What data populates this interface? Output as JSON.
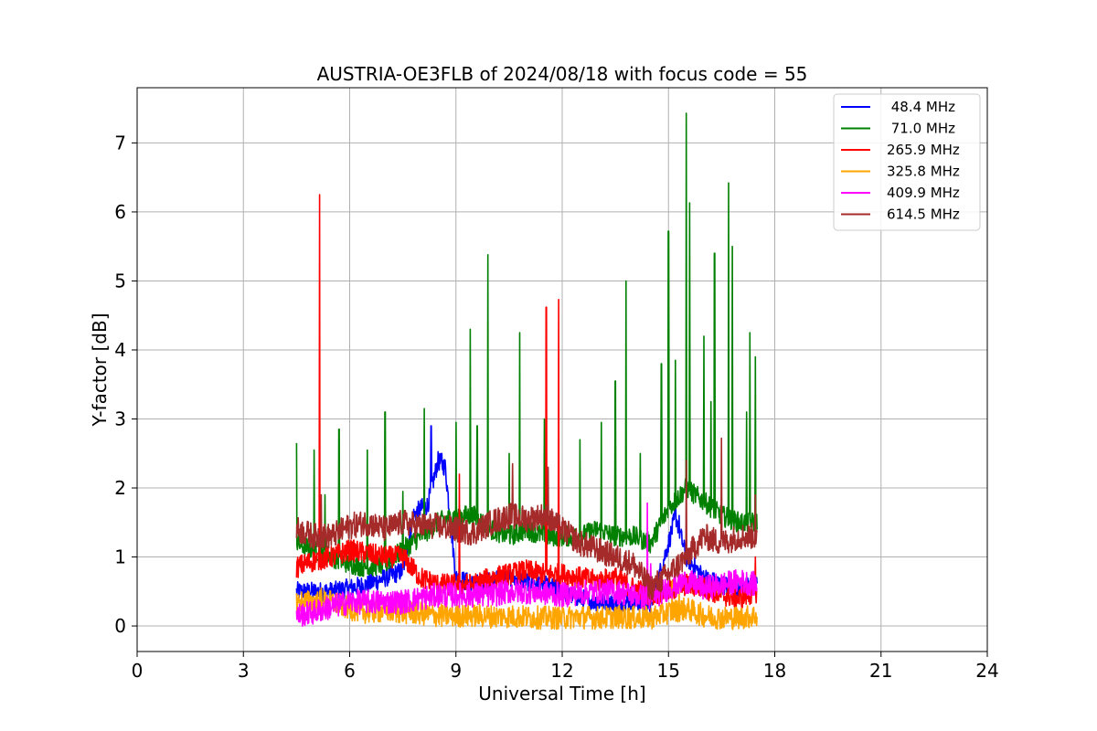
{
  "chart_data": {
    "type": "line",
    "title": "AUSTRIA-OE3FLB of 2024/08/18 with focus code = 55",
    "xlabel": "Universal Time [h]",
    "ylabel": "Y-factor [dB]",
    "xlim": [
      0,
      24
    ],
    "ylim": [
      -0.37,
      7.8
    ],
    "xticks": [
      "0",
      "3",
      "6",
      "9",
      "12",
      "15",
      "18",
      "21",
      "24"
    ],
    "yticks": [
      "0",
      "1",
      "2",
      "3",
      "4",
      "5",
      "6",
      "7"
    ],
    "grid": true,
    "legend_position": "top-right",
    "series": [
      {
        "name": " 48.4 MHz",
        "color": "#0000ff",
        "x": [
          4.5,
          5,
          5.5,
          6,
          6.5,
          7,
          7.5,
          7.8,
          8,
          8.2,
          8.5,
          8.7,
          9,
          9.5,
          10,
          10.5,
          11,
          11.5,
          12,
          12.5,
          13,
          13.5,
          14,
          14.5,
          15,
          15.2,
          15.5,
          16,
          16.5,
          17,
          17.5
        ],
        "values": [
          0.5,
          0.5,
          0.5,
          0.55,
          0.6,
          0.7,
          0.8,
          1.6,
          1.7,
          1.75,
          2.4,
          2.3,
          0.7,
          0.6,
          0.65,
          0.7,
          0.65,
          0.6,
          0.5,
          0.4,
          0.35,
          0.35,
          0.35,
          0.3,
          1.2,
          1.6,
          1.0,
          0.7,
          0.6,
          0.55,
          0.6
        ],
        "spikes": [
          [
            8.3,
            2.9
          ],
          [
            8.6,
            2.5
          ],
          [
            15.2,
            1.95
          ],
          [
            15.3,
            1.6
          ]
        ]
      },
      {
        "name": " 71.0 MHz",
        "color": "#008000",
        "x": [
          4.5,
          5,
          5.5,
          6,
          6.5,
          7,
          7.5,
          8,
          8.5,
          9,
          9.5,
          10,
          10.5,
          11,
          11.5,
          12,
          12.5,
          13,
          13.5,
          14,
          14.5,
          15,
          15.5,
          16,
          16.5,
          17,
          17.5
        ],
        "values": [
          1.2,
          1.1,
          1.0,
          0.9,
          0.85,
          0.9,
          1.1,
          1.3,
          1.5,
          1.6,
          1.6,
          1.4,
          1.3,
          1.4,
          1.3,
          1.3,
          1.3,
          1.4,
          1.3,
          1.3,
          1.2,
          1.7,
          2.0,
          1.8,
          1.6,
          1.5,
          1.5
        ],
        "spikes": [
          [
            4.5,
            2.65
          ],
          [
            5.0,
            2.55
          ],
          [
            5.3,
            1.9
          ],
          [
            5.7,
            2.85
          ],
          [
            6.5,
            2.55
          ],
          [
            7.0,
            3.1
          ],
          [
            7.5,
            1.95
          ],
          [
            8.1,
            3.15
          ],
          [
            9.0,
            2.95
          ],
          [
            9.4,
            4.3
          ],
          [
            9.6,
            2.9
          ],
          [
            9.9,
            5.38
          ],
          [
            10.5,
            2.5
          ],
          [
            10.8,
            4.25
          ],
          [
            11.5,
            3.0
          ],
          [
            12.5,
            2.7
          ],
          [
            13.1,
            2.95
          ],
          [
            13.5,
            3.55
          ],
          [
            13.8,
            5.0
          ],
          [
            14.2,
            2.5
          ],
          [
            14.8,
            3.8
          ],
          [
            15.0,
            5.72
          ],
          [
            15.2,
            3.85
          ],
          [
            15.5,
            7.43
          ],
          [
            15.6,
            6.13
          ],
          [
            16.0,
            4.2
          ],
          [
            16.2,
            3.25
          ],
          [
            16.3,
            5.4
          ],
          [
            16.7,
            6.42
          ],
          [
            16.8,
            5.5
          ],
          [
            17.2,
            3.1
          ],
          [
            17.3,
            4.25
          ],
          [
            17.45,
            3.9
          ]
        ]
      },
      {
        "name": "265.9 MHz",
        "color": "#ff0000",
        "x": [
          4.5,
          5,
          5.5,
          6,
          6.5,
          7,
          7.5,
          8,
          8.5,
          9,
          9.5,
          10,
          10.5,
          11,
          11.5,
          12,
          12.5,
          13,
          13.5,
          14,
          14.5,
          15,
          15.5,
          16,
          16.5,
          17,
          17.5
        ],
        "values": [
          0.85,
          0.95,
          1.0,
          1.1,
          1.05,
          1.0,
          1.0,
          0.7,
          0.6,
          0.6,
          0.6,
          0.7,
          0.75,
          0.8,
          0.75,
          0.75,
          0.7,
          0.65,
          0.7,
          0.55,
          0.45,
          0.5,
          0.6,
          0.55,
          0.45,
          0.4,
          0.5
        ],
        "spikes": [
          [
            5.15,
            6.25
          ],
          [
            9.1,
            2.2
          ],
          [
            11.55,
            4.62
          ],
          [
            11.9,
            4.73
          ],
          [
            17.45,
            1.0
          ]
        ]
      },
      {
        "name": "325.8 MHz",
        "color": "#ffa500",
        "x": [
          4.5,
          5,
          5.5,
          6,
          6.5,
          7,
          7.5,
          8,
          8.5,
          9,
          9.5,
          10,
          10.5,
          11,
          11.5,
          12,
          12.5,
          13,
          13.5,
          14,
          14.5,
          15,
          15.5,
          16,
          16.5,
          17,
          17.5
        ],
        "values": [
          0.35,
          0.35,
          0.35,
          0.25,
          0.2,
          0.22,
          0.2,
          0.18,
          0.15,
          0.15,
          0.15,
          0.14,
          0.14,
          0.13,
          0.12,
          0.12,
          0.13,
          0.12,
          0.13,
          0.12,
          0.12,
          0.2,
          0.25,
          0.15,
          0.12,
          0.12,
          0.15
        ],
        "spikes": [
          [
            5.2,
            0.55
          ],
          [
            15.1,
            0.65
          ],
          [
            15.3,
            0.5
          ]
        ]
      },
      {
        "name": "409.9 MHz",
        "color": "#ff00ff",
        "x": [
          4.5,
          5,
          5.5,
          6,
          6.5,
          7,
          7.5,
          8,
          8.5,
          9,
          9.5,
          10,
          10.5,
          11,
          11.5,
          12,
          12.5,
          13,
          13.5,
          14,
          14.5,
          15,
          15.5,
          16,
          16.5,
          17,
          17.5
        ],
        "values": [
          0.15,
          0.2,
          0.28,
          0.35,
          0.35,
          0.35,
          0.35,
          0.4,
          0.45,
          0.45,
          0.45,
          0.45,
          0.5,
          0.5,
          0.48,
          0.45,
          0.48,
          0.5,
          0.5,
          0.45,
          0.4,
          0.55,
          0.65,
          0.55,
          0.6,
          0.65,
          0.6
        ],
        "spikes": [
          [
            14.4,
            1.78
          ],
          [
            14.5,
            0.9
          ]
        ]
      },
      {
        "name": "614.5 MHz",
        "color": "#a52a2a",
        "x": [
          4.5,
          5,
          5.5,
          6,
          6.5,
          7,
          7.5,
          8,
          8.5,
          9,
          9.5,
          10,
          10.5,
          11,
          11.5,
          12,
          12.5,
          13,
          13.5,
          14,
          14.5,
          15,
          15.5,
          16,
          16.5,
          17,
          17.5
        ],
        "values": [
          1.4,
          1.3,
          1.3,
          1.45,
          1.5,
          1.4,
          1.5,
          1.45,
          1.45,
          1.4,
          1.35,
          1.5,
          1.6,
          1.55,
          1.6,
          1.4,
          1.2,
          1.1,
          1.0,
          0.9,
          0.55,
          0.75,
          1.0,
          1.3,
          1.2,
          1.3,
          1.3
        ],
        "spikes": [
          [
            5.2,
            1.9
          ],
          [
            10.6,
            2.35
          ],
          [
            11.6,
            2.3
          ],
          [
            15.5,
            2.4
          ],
          [
            16.5,
            2.72
          ],
          [
            17.45,
            1.9
          ]
        ]
      }
    ]
  }
}
